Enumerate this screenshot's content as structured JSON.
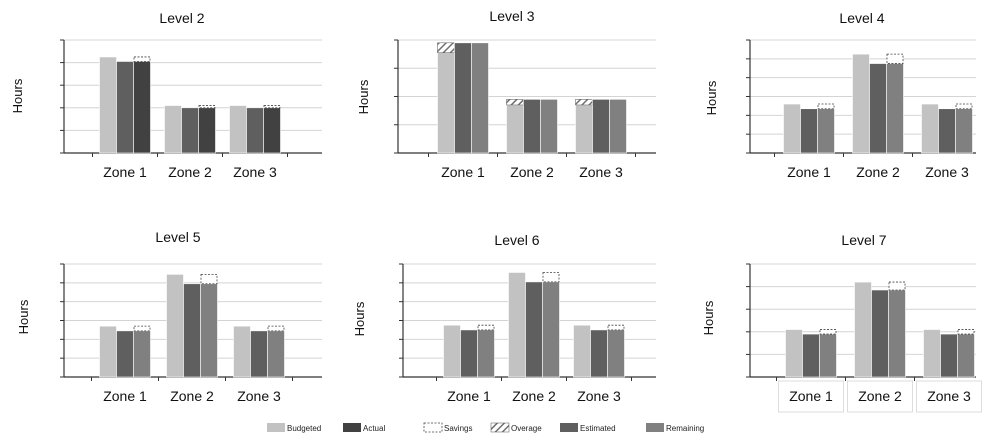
{
  "colors": {
    "budgeted": "#c2c2c2",
    "actual": "#414141",
    "estimated": "#5f5f5f",
    "remaining": "#808080",
    "grid": "#d4d4d4",
    "axis": "#333333",
    "hatch": "#707070"
  },
  "legend": {
    "items": [
      {
        "label": "Budgeted",
        "key": "budgeted"
      },
      {
        "label": "Actual",
        "key": "actual"
      },
      {
        "label": "Savings",
        "key": "savings"
      },
      {
        "label": "Overage",
        "key": "overage"
      },
      {
        "label": "Estimated",
        "key": "estimated"
      },
      {
        "label": "Remaining",
        "key": "remaining"
      }
    ]
  },
  "chart_data": [
    {
      "type": "bar",
      "title": "Level 2",
      "ylabel": "Hours",
      "categories": [
        "Zone 1",
        "Zone 2",
        "Zone 3"
      ],
      "ylim": [
        0,
        5
      ],
      "grid": true,
      "series": [
        {
          "name": "Budgeted",
          "values": [
            4.25,
            2.1,
            2.1
          ]
        },
        {
          "name": "Actual",
          "values": [
            4.05,
            2.0,
            2.0
          ]
        },
        {
          "name": "Savings",
          "values": [
            0.2,
            0.1,
            0.1
          ]
        }
      ]
    },
    {
      "type": "bar",
      "title": "Level 3",
      "ylabel": "Hours",
      "categories": [
        "Zone 1",
        "Zone 2",
        "Zone 3"
      ],
      "ylim": [
        0,
        4
      ],
      "grid": true,
      "series": [
        {
          "name": "Budgeted",
          "values": [
            3.55,
            1.7,
            1.7
          ]
        },
        {
          "name": "Overage",
          "values": [
            0.35,
            0.2,
            0.2
          ]
        },
        {
          "name": "Estimated",
          "values": [
            3.9,
            1.9,
            1.9
          ]
        },
        {
          "name": "Remaining",
          "values": [
            3.9,
            1.9,
            1.9
          ]
        }
      ]
    },
    {
      "type": "bar",
      "title": "Level 4",
      "ylabel": "Hours",
      "categories": [
        "Zone 1",
        "Zone 2",
        "Zone 3"
      ],
      "ylim": [
        0,
        6
      ],
      "grid": true,
      "series": [
        {
          "name": "Budgeted",
          "values": [
            2.6,
            5.25,
            2.6
          ]
        },
        {
          "name": "Estimated",
          "values": [
            2.35,
            4.75,
            2.35
          ]
        },
        {
          "name": "Remaining",
          "values": [
            2.35,
            4.75,
            2.35
          ]
        },
        {
          "name": "Savings",
          "values": [
            0.25,
            0.5,
            0.25
          ]
        }
      ]
    },
    {
      "type": "bar",
      "title": "Level 5",
      "ylabel": "Hours",
      "categories": [
        "Zone 1",
        "Zone 2",
        "Zone 3"
      ],
      "ylim": [
        0,
        6
      ],
      "grid": true,
      "series": [
        {
          "name": "Budgeted",
          "values": [
            2.7,
            5.45,
            2.7
          ]
        },
        {
          "name": "Estimated",
          "values": [
            2.45,
            4.95,
            2.45
          ]
        },
        {
          "name": "Remaining",
          "values": [
            2.45,
            4.95,
            2.45
          ]
        },
        {
          "name": "Savings",
          "values": [
            0.25,
            0.5,
            0.25
          ]
        }
      ]
    },
    {
      "type": "bar",
      "title": "Level 6",
      "ylabel": "Hours",
      "categories": [
        "Zone 1",
        "Zone 2",
        "Zone 3"
      ],
      "ylim": [
        0,
        6
      ],
      "grid": true,
      "series": [
        {
          "name": "Budgeted",
          "values": [
            2.75,
            5.55,
            2.75
          ]
        },
        {
          "name": "Estimated",
          "values": [
            2.5,
            5.05,
            2.5
          ]
        },
        {
          "name": "Remaining",
          "values": [
            2.5,
            5.05,
            2.5
          ]
        },
        {
          "name": "Savings",
          "values": [
            0.25,
            0.5,
            0.25
          ]
        }
      ]
    },
    {
      "type": "bar",
      "title": "Level 7",
      "ylabel": "Hours",
      "categories": [
        "Zone 1",
        "Zone 2",
        "Zone 3"
      ],
      "ylim": [
        0,
        5
      ],
      "grid": true,
      "series": [
        {
          "name": "Budgeted",
          "values": [
            2.1,
            4.2,
            2.1
          ]
        },
        {
          "name": "Estimated",
          "values": [
            1.9,
            3.85,
            1.9
          ]
        },
        {
          "name": "Remaining",
          "values": [
            1.9,
            3.85,
            1.9
          ]
        },
        {
          "name": "Savings",
          "values": [
            0.2,
            0.35,
            0.2
          ]
        }
      ]
    }
  ]
}
